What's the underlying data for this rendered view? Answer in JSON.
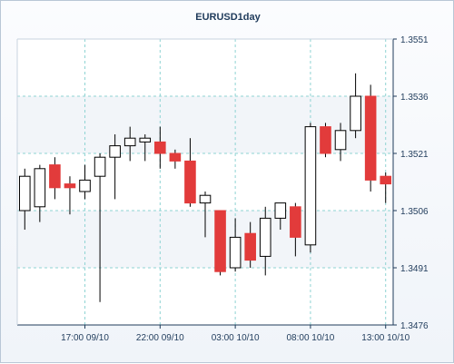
{
  "chart_data": {
    "type": "candlestick",
    "title": "EURUSD1day",
    "ylim": [
      1.3476,
      1.3551
    ],
    "y_ticks": [
      "1.3551",
      "1.3536",
      "1.3521",
      "1.3506",
      "1.3491",
      "1.3476"
    ],
    "x_ticks": [
      "17:00 09/10",
      "22:00 09/10",
      "03:00 10/10",
      "08:00 10/10",
      "13:00 10/10"
    ],
    "grid": true,
    "colors": {
      "bull": "#ffffff",
      "bear": "#e23b3b",
      "wick": "#000000",
      "grid": "#8fd3d3"
    },
    "candles": [
      {
        "open": 1.3506,
        "high": 1.3517,
        "low": 1.3501,
        "close": 1.3515
      },
      {
        "open": 1.3507,
        "high": 1.3518,
        "low": 1.3503,
        "close": 1.3517
      },
      {
        "open": 1.3518,
        "high": 1.352,
        "low": 1.3509,
        "close": 1.3512
      },
      {
        "open": 1.3513,
        "high": 1.3515,
        "low": 1.3505,
        "close": 1.3512
      },
      {
        "open": 1.3511,
        "high": 1.3518,
        "low": 1.3509,
        "close": 1.3514
      },
      {
        "open": 1.3515,
        "high": 1.3521,
        "low": 1.3482,
        "close": 1.352
      },
      {
        "open": 1.352,
        "high": 1.3526,
        "low": 1.3509,
        "close": 1.3523
      },
      {
        "open": 1.3523,
        "high": 1.3528,
        "low": 1.3519,
        "close": 1.3525
      },
      {
        "open": 1.3524,
        "high": 1.3526,
        "low": 1.3519,
        "close": 1.3525
      },
      {
        "open": 1.3524,
        "high": 1.3528,
        "low": 1.3517,
        "close": 1.3521
      },
      {
        "open": 1.3521,
        "high": 1.3522,
        "low": 1.3517,
        "close": 1.3519
      },
      {
        "open": 1.3519,
        "high": 1.3525,
        "low": 1.3507,
        "close": 1.3508
      },
      {
        "open": 1.3508,
        "high": 1.3511,
        "low": 1.3499,
        "close": 1.351
      },
      {
        "open": 1.3506,
        "high": 1.3506,
        "low": 1.3489,
        "close": 1.349
      },
      {
        "open": 1.3491,
        "high": 1.3504,
        "low": 1.349,
        "close": 1.3499
      },
      {
        "open": 1.35,
        "high": 1.3503,
        "low": 1.3491,
        "close": 1.3493
      },
      {
        "open": 1.3494,
        "high": 1.3507,
        "low": 1.3489,
        "close": 1.3504
      },
      {
        "open": 1.3504,
        "high": 1.3508,
        "low": 1.3501,
        "close": 1.3508
      },
      {
        "open": 1.3507,
        "high": 1.3508,
        "low": 1.3494,
        "close": 1.3499
      },
      {
        "open": 1.3497,
        "high": 1.3529,
        "low": 1.3495,
        "close": 1.3528
      },
      {
        "open": 1.3528,
        "high": 1.3529,
        "low": 1.352,
        "close": 1.3521
      },
      {
        "open": 1.3522,
        "high": 1.3529,
        "low": 1.3519,
        "close": 1.3527
      },
      {
        "open": 1.3527,
        "high": 1.3542,
        "low": 1.3525,
        "close": 1.3536
      },
      {
        "open": 1.3536,
        "high": 1.3539,
        "low": 1.3511,
        "close": 1.3514
      },
      {
        "open": 1.3515,
        "high": 1.3516,
        "low": 1.3508,
        "close": 1.3513
      }
    ]
  }
}
